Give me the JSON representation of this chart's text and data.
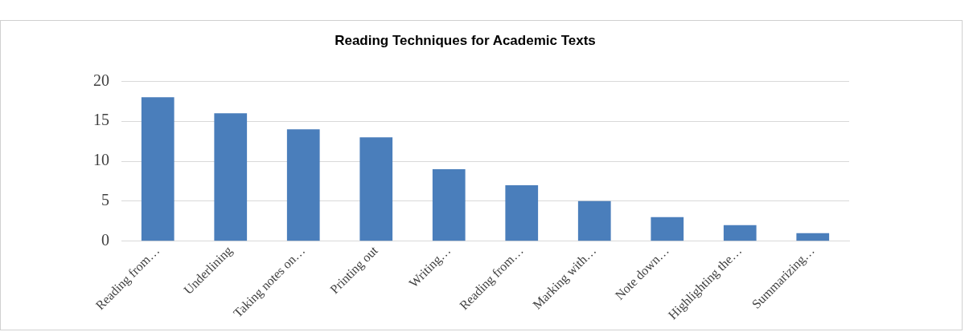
{
  "chart_data": {
    "type": "bar",
    "title": "Reading Techniques for Academic Texts",
    "categories": [
      "Reading from…",
      "Underlining",
      "Taking notes on…",
      "Printing out",
      "Writing…",
      "Reading from…",
      "Marking with…",
      "Note down…",
      "Highlighting the…",
      "Summarizing…"
    ],
    "values": [
      18,
      16,
      14,
      13,
      9,
      7,
      5,
      3,
      2,
      1
    ],
    "color": "#4a7ebb",
    "ylim": [
      0,
      20
    ],
    "yticks": [
      0,
      5,
      10,
      15,
      20
    ],
    "grid": "y",
    "legend": false
  }
}
